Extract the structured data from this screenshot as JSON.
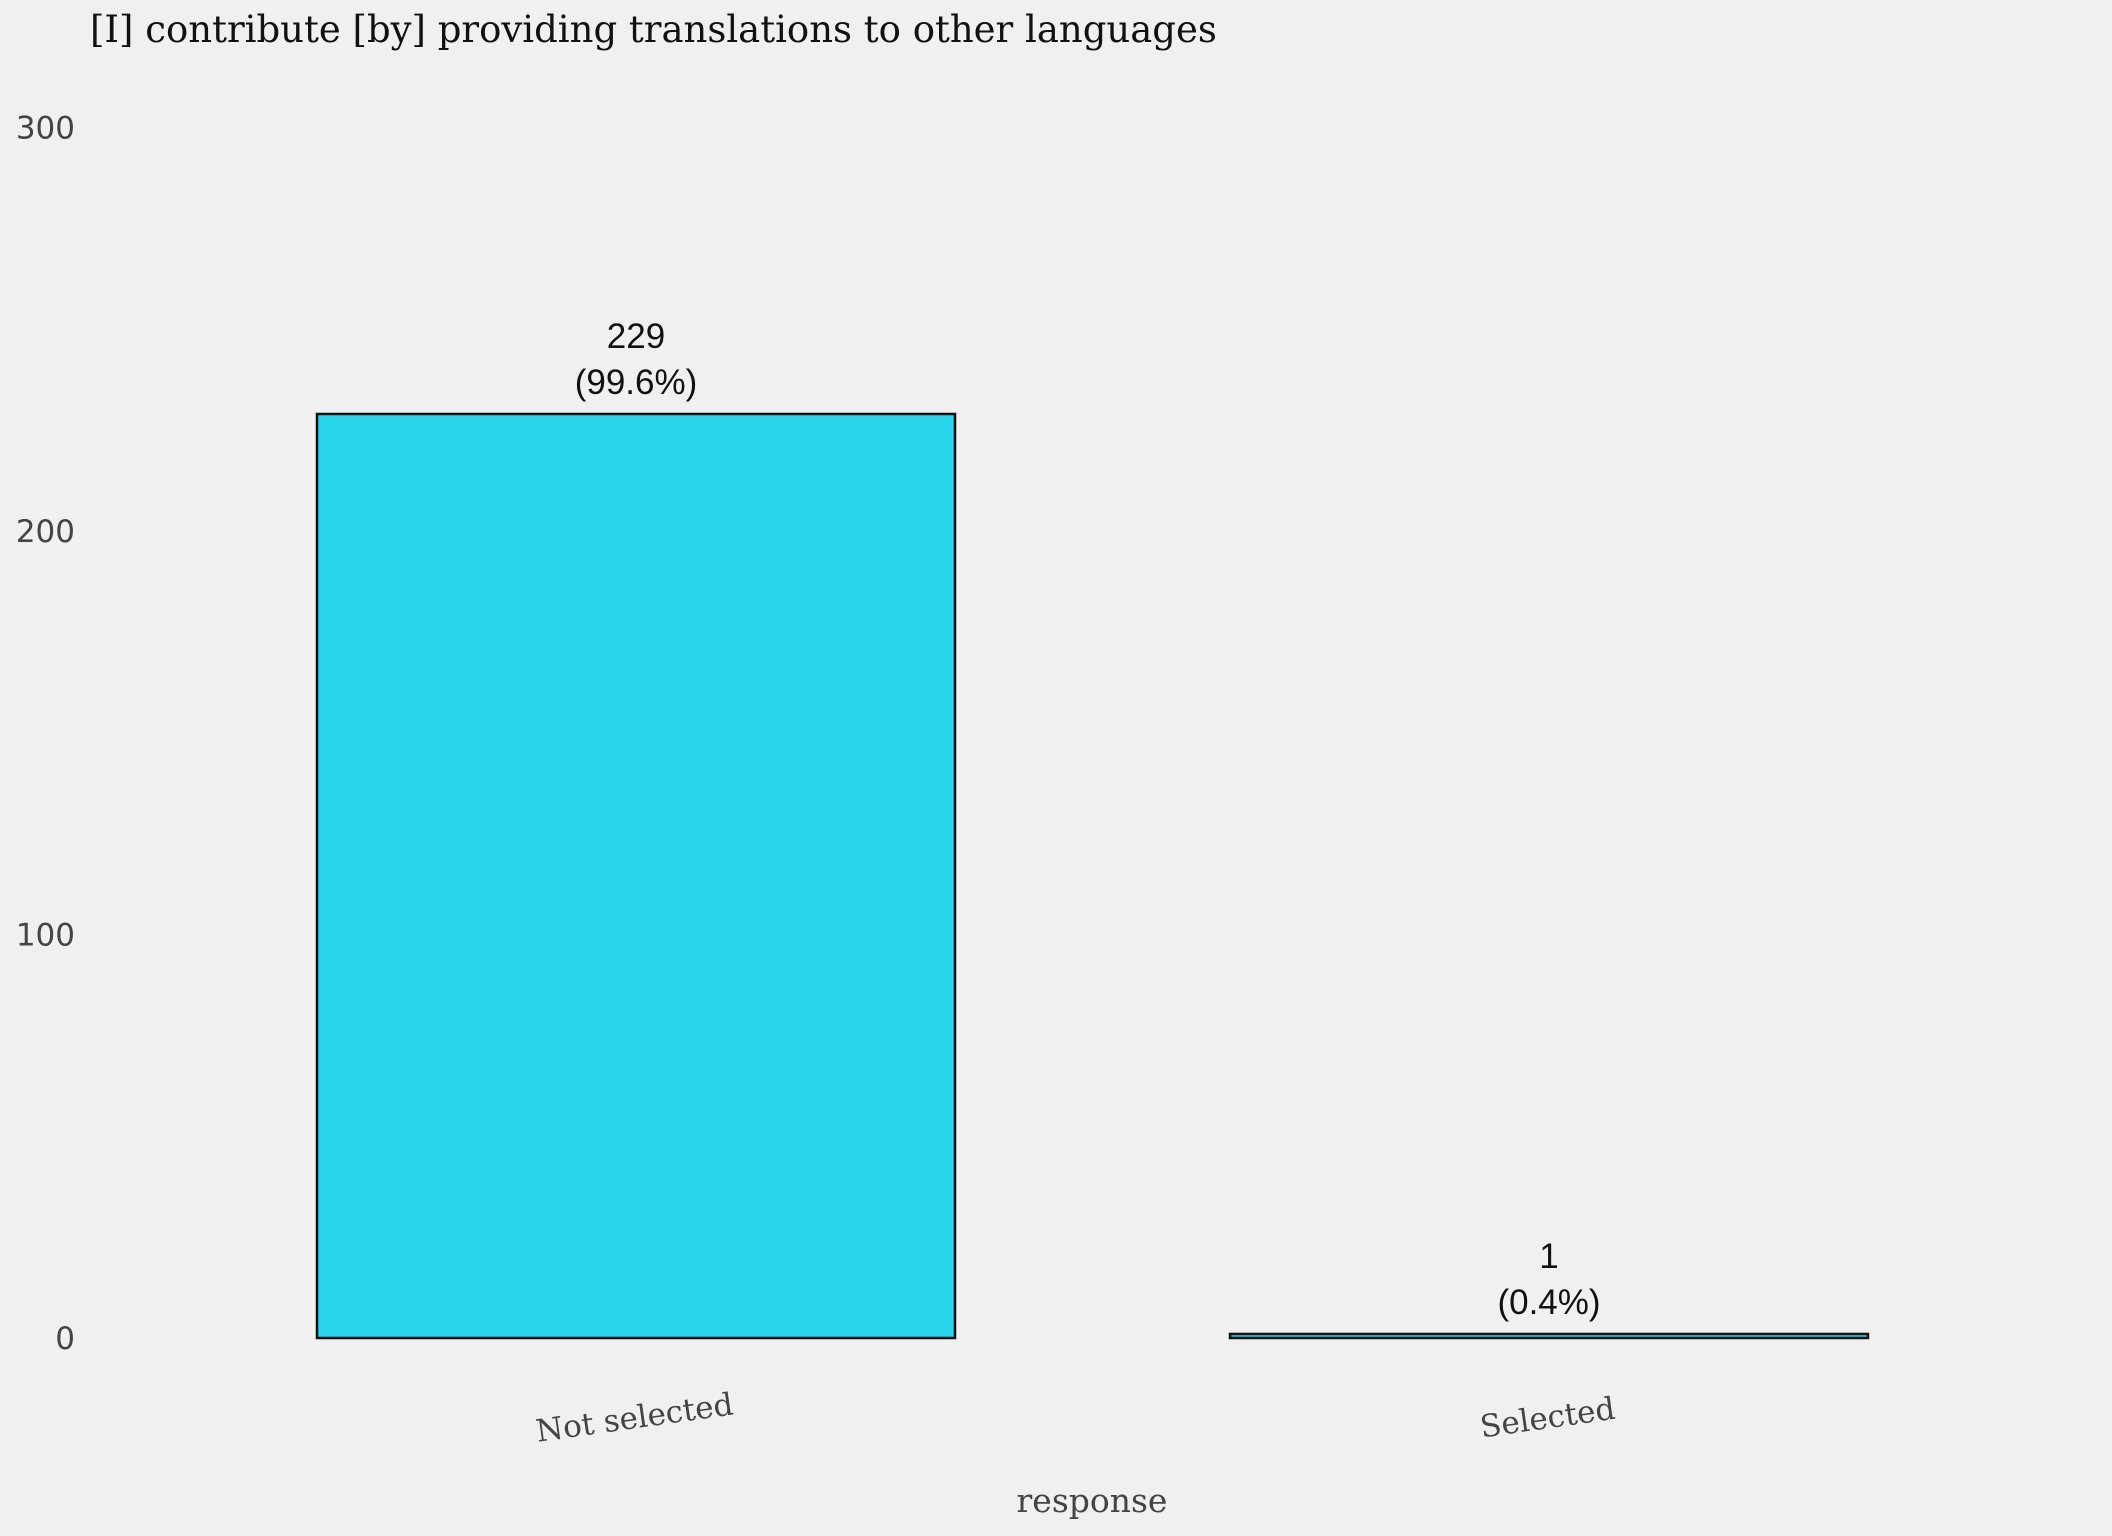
{
  "chart_data": {
    "type": "bar",
    "title": "[I] contribute [by] providing translations to other languages",
    "xlabel": "response",
    "ylabel": "",
    "categories": [
      "Not selected",
      "Selected"
    ],
    "values": [
      229,
      1
    ],
    "value_labels": [
      "229",
      "1"
    ],
    "percent_labels": [
      "(99.6%)",
      "(0.4%)"
    ],
    "yticks": [
      0,
      100,
      200,
      300
    ],
    "ylim": [
      0,
      310
    ],
    "grid": false,
    "legend": "none",
    "colors": {
      "bar_fill": "#29d4ec",
      "bar_stroke": "#111111",
      "background": "#f0f0f0",
      "text": "#444444"
    }
  }
}
